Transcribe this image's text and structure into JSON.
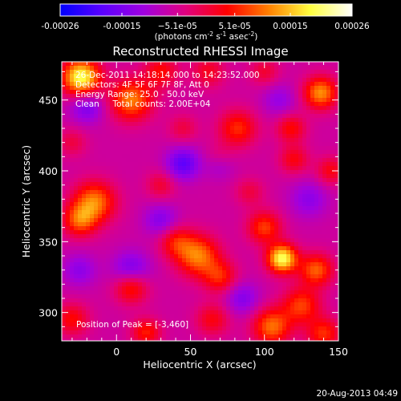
{
  "chart_data": {
    "type": "heatmap",
    "title": "Reconstructed RHESSI Image",
    "xlabel": "Heliocentric X (arcsec)",
    "ylabel": "Heliocentric Y (arcsec)",
    "xlim": [
      -37,
      150
    ],
    "ylim": [
      280,
      477
    ],
    "x_ticks": [
      0,
      50,
      100,
      150
    ],
    "y_ticks": [
      300,
      350,
      400,
      450
    ],
    "colorbar": {
      "range": [
        -0.00026,
        0.00026
      ],
      "tick_values": [
        -0.00026,
        -0.00015,
        -5.1e-05,
        5.1e-05,
        0.00015,
        0.00026
      ],
      "tick_labels": [
        "-0.00026",
        "-0.00015",
        "−5.1e-05",
        "5.1e-05",
        "0.00015",
        "0.00026"
      ],
      "units_prefix": "(photons cm",
      "units_exp1": "-2",
      "units_mid": " s",
      "units_exp2": "-1",
      "units_mid2": " asec",
      "units_exp3": "-2",
      "units_suffix": ")"
    },
    "annotations": [
      "26-Dec-2011 14:18:14.000 to 14:23:52.000",
      "Detectors: 4F 5F 6F 7F 8F, Att 0",
      "Energy Range: 25.0 - 50.0 keV",
      "Clean     Total counts: 2.00E+04"
    ],
    "peak_label": "Position of Peak = [-3,460]",
    "sources": [
      {
        "x": -24,
        "y": 466,
        "amp": 0.00026,
        "sigma": 9
      },
      {
        "x": 10,
        "y": 450,
        "amp": 0.00017,
        "sigma": 10
      },
      {
        "x": 30,
        "y": 470,
        "amp": 0.0001,
        "sigma": 8
      },
      {
        "x": 62,
        "y": 470,
        "amp": 8e-05,
        "sigma": 8
      },
      {
        "x": 82,
        "y": 430,
        "amp": 0.00012,
        "sigma": 9
      },
      {
        "x": 70,
        "y": 408,
        "amp": 8e-05,
        "sigma": 7
      },
      {
        "x": 138,
        "y": 455,
        "amp": 0.00018,
        "sigma": 8
      },
      {
        "x": 118,
        "y": 430,
        "amp": 0.0001,
        "sigma": 7
      },
      {
        "x": 120,
        "y": 408,
        "amp": 9e-05,
        "sigma": 7
      },
      {
        "x": -15,
        "y": 378,
        "amp": 0.00017,
        "sigma": 10
      },
      {
        "x": -25,
        "y": 365,
        "amp": 0.00014,
        "sigma": 8
      },
      {
        "x": 30,
        "y": 390,
        "amp": 7e-05,
        "sigma": 7
      },
      {
        "x": 55,
        "y": 340,
        "amp": 0.00017,
        "sigma": 10
      },
      {
        "x": 40,
        "y": 350,
        "amp": 0.0001,
        "sigma": 8
      },
      {
        "x": 70,
        "y": 325,
        "amp": 0.00011,
        "sigma": 8
      },
      {
        "x": 112,
        "y": 338,
        "amp": 0.00026,
        "sigma": 7
      },
      {
        "x": 100,
        "y": 360,
        "amp": 0.00013,
        "sigma": 8
      },
      {
        "x": 135,
        "y": 330,
        "amp": 0.00015,
        "sigma": 8
      },
      {
        "x": 125,
        "y": 305,
        "amp": 0.00013,
        "sigma": 9
      },
      {
        "x": 105,
        "y": 290,
        "amp": 0.00016,
        "sigma": 9
      },
      {
        "x": 140,
        "y": 285,
        "amp": 0.00012,
        "sigma": 8
      },
      {
        "x": 65,
        "y": 295,
        "amp": 9e-05,
        "sigma": 8
      },
      {
        "x": 10,
        "y": 318,
        "amp": 0.00013,
        "sigma": 8
      },
      {
        "x": -30,
        "y": 295,
        "amp": 0.0001,
        "sigma": 8
      },
      {
        "x": 20,
        "y": 286,
        "amp": 0.00011,
        "sigma": 7
      },
      {
        "x": 145,
        "y": 400,
        "amp": 9e-05,
        "sigma": 7
      },
      {
        "x": -30,
        "y": 420,
        "amp": 6e-05,
        "sigma": 7
      },
      {
        "x": 45,
        "y": 430,
        "amp": 6e-05,
        "sigma": 7
      },
      {
        "x": 100,
        "y": 470,
        "amp": 7e-05,
        "sigma": 7
      },
      {
        "x": 90,
        "y": 385,
        "amp": 6e-05,
        "sigma": 7
      },
      {
        "x": -20,
        "y": 445,
        "amp": -9e-05,
        "sigma": 8
      },
      {
        "x": 45,
        "y": 405,
        "amp": -0.00012,
        "sigma": 8
      },
      {
        "x": 70,
        "y": 405,
        "amp": -9e-05,
        "sigma": 7
      },
      {
        "x": 10,
        "y": 330,
        "amp": -0.0001,
        "sigma": 9
      },
      {
        "x": 30,
        "y": 365,
        "amp": -8e-05,
        "sigma": 8
      },
      {
        "x": 130,
        "y": 380,
        "amp": -7e-05,
        "sigma": 9
      },
      {
        "x": 85,
        "y": 310,
        "amp": -8e-05,
        "sigma": 8
      },
      {
        "x": -25,
        "y": 330,
        "amp": -7e-05,
        "sigma": 8
      },
      {
        "x": 110,
        "y": 450,
        "amp": -6e-05,
        "sigma": 8
      }
    ],
    "background": -6e-05
  },
  "footer": {
    "date": "20-Aug-2013 04:49"
  },
  "colors": {
    "background": "#000000",
    "foreground": "#ffffff",
    "colormap": [
      "#0000ff",
      "#5a00ff",
      "#a000e0",
      "#e00080",
      "#ff0000",
      "#ff8000",
      "#ffff40",
      "#ffffff"
    ]
  }
}
